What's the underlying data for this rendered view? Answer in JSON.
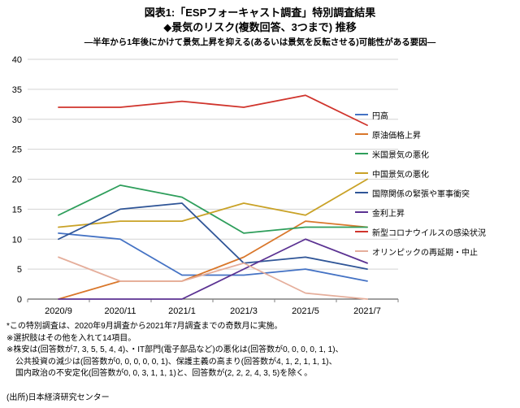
{
  "header": {
    "title_line1": "図表1:「ESPフォーキャスト調査」特別調査結果",
    "title_line2": "◆景気のリスク(複数回答、3つまで) 推移",
    "subtitle": "―半年から1年後にかけて景気上昇を抑える(あるいは景気を反転させる)可能性がある要因―"
  },
  "chart_data": {
    "type": "line",
    "categories": [
      "2020/9",
      "2020/11",
      "2021/1",
      "2021/3",
      "2021/5",
      "2021/7"
    ],
    "series": [
      {
        "id": "yen-appreciation",
        "name": "円高",
        "color": "#4472C4",
        "values": [
          11,
          10,
          4,
          4,
          5,
          3
        ]
      },
      {
        "id": "oil-price-rise",
        "name": "原油価格上昇",
        "color": "#D9772B",
        "values": [
          0,
          3,
          3,
          7,
          13,
          12
        ]
      },
      {
        "id": "us-economy-worsening",
        "name": "米国景気の悪化",
        "color": "#2E9E5B",
        "values": [
          14,
          19,
          17,
          11,
          12,
          12
        ]
      },
      {
        "id": "china-economy-worsening",
        "name": "中国景気の悪化",
        "color": "#C9A227",
        "values": [
          12,
          13,
          13,
          16,
          14,
          20
        ]
      },
      {
        "id": "international-tensions",
        "name": "国際関係の緊張や軍事衝突",
        "color": "#2F5597",
        "values": [
          10,
          15,
          16,
          6,
          7,
          5
        ]
      },
      {
        "id": "interest-rate-rise",
        "name": "金利上昇",
        "color": "#5B3292",
        "values": [
          0,
          0,
          0,
          5,
          10,
          6
        ]
      },
      {
        "id": "covid19-infection",
        "name": "新型コロナウイルスの感染状況",
        "color": "#D0342C",
        "values": [
          32,
          32,
          33,
          32,
          34,
          29
        ]
      },
      {
        "id": "olympics-postponement",
        "name": "オリンピックの再延期・中止",
        "color": "#E5AE9B",
        "values": [
          7,
          3,
          3,
          6,
          1,
          0
        ]
      }
    ],
    "ylim": [
      0,
      40
    ],
    "ytick_step": 5,
    "grid": true,
    "legend_position": "right",
    "xlabel": "",
    "ylabel": ""
  },
  "notes": [
    "*この特別調査は、2020年9月調査から2021年7月調査までの奇数月に実施。",
    "※選択肢はその他を入れて14項目。",
    "※株安は(回答数が7, 3, 5, 5, 4, 4)、・IT部門(電子部品など)の悪化は(回答数が0, 0, 0, 0, 1, 1)、",
    "公共投資の減少は(回答数が0, 0, 0, 0, 0, 1)、保護主義の高まり(回答数が4, 1, 2, 1, 1, 1)、",
    "国内政治の不安定化(回答数が0, 0, 3, 1, 1, 1)と、回答数が(2, 2, 2, 4, 3, 5)を除く。"
  ],
  "source": "(出所)日本経済研究センター"
}
